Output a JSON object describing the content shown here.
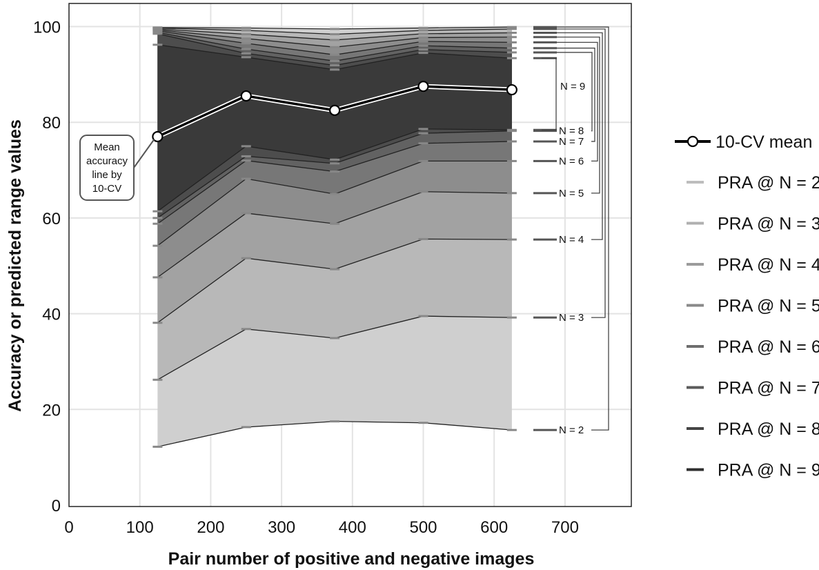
{
  "chart_data": {
    "type": "area",
    "xlabel": "Pair number of positive and negative images",
    "ylabel": "Accuracy or predicted range values",
    "xlim": [
      0,
      790
    ],
    "ylim": [
      0,
      100
    ],
    "xticks": [
      0,
      100,
      200,
      300,
      400,
      500,
      600,
      700
    ],
    "yticks": [
      0,
      20,
      40,
      60,
      80,
      100
    ],
    "grid": true,
    "legend_position": "right",
    "x": [
      125,
      250,
      375,
      500,
      625
    ],
    "mean_series": {
      "name": "10-CV mean",
      "color": "#000000",
      "values": [
        77,
        85.5,
        82.5,
        87.5,
        86.8
      ]
    },
    "series": [
      {
        "name": "PRA @ N = 2",
        "label": "N = 2",
        "color": "#cfcfcf",
        "low": [
          12.2,
          16.3,
          17.5,
          17.2,
          15.7
        ],
        "high": [
          99.8,
          99.7,
          99.5,
          99.7,
          99.9
        ]
      },
      {
        "name": "PRA @ N = 3",
        "label": "N = 3",
        "color": "#b8b8b8",
        "low": [
          26.2,
          36.8,
          34.9,
          39.5,
          39.2
        ],
        "high": [
          99.7,
          99.2,
          98.4,
          99.2,
          99.5
        ]
      },
      {
        "name": "PRA @ N = 4",
        "label": "N = 4",
        "color": "#a2a2a2",
        "low": [
          38.1,
          51.6,
          49.3,
          55.6,
          55.5
        ],
        "high": [
          99.5,
          98.4,
          97.2,
          98.5,
          98.7
        ]
      },
      {
        "name": "PRA @ N = 5",
        "label": "N = 5",
        "color": "#8d8d8d",
        "low": [
          47.6,
          61.0,
          58.8,
          65.5,
          65.2
        ],
        "high": [
          99.3,
          97.5,
          95.7,
          97.7,
          97.8
        ]
      },
      {
        "name": "PRA @ N = 6",
        "label": "N = 6",
        "color": "#777777",
        "low": [
          54.2,
          68.2,
          65.0,
          71.9,
          71.9
        ],
        "high": [
          99.1,
          96.5,
          94.1,
          96.9,
          96.7
        ]
      },
      {
        "name": "PRA @ N = 7",
        "label": "N = 7",
        "color": "#626262",
        "low": [
          58.8,
          72.0,
          69.7,
          75.6,
          76.0
        ],
        "high": [
          98.8,
          95.3,
          92.8,
          96.0,
          95.5
        ]
      },
      {
        "name": "PRA @ N = 8",
        "label": "N = 8",
        "color": "#4d4d4d",
        "low": [
          60.0,
          72.9,
          71.4,
          77.7,
          78.2
        ],
        "high": [
          98.5,
          94.4,
          91.9,
          95.2,
          94.6
        ]
      },
      {
        "name": "PRA @ N = 9",
        "label": "N = 9",
        "color": "#3a3a3a",
        "low": [
          61.4,
          75.0,
          72.2,
          78.6,
          78.4
        ],
        "high": [
          96.2,
          93.6,
          91.0,
          94.5,
          93.4
        ]
      }
    ],
    "annotations": [
      {
        "text": "Mean accuracy line by 10-CV",
        "lines": [
          "Mean",
          "accuracy",
          "line by",
          "10-CV"
        ]
      }
    ]
  }
}
